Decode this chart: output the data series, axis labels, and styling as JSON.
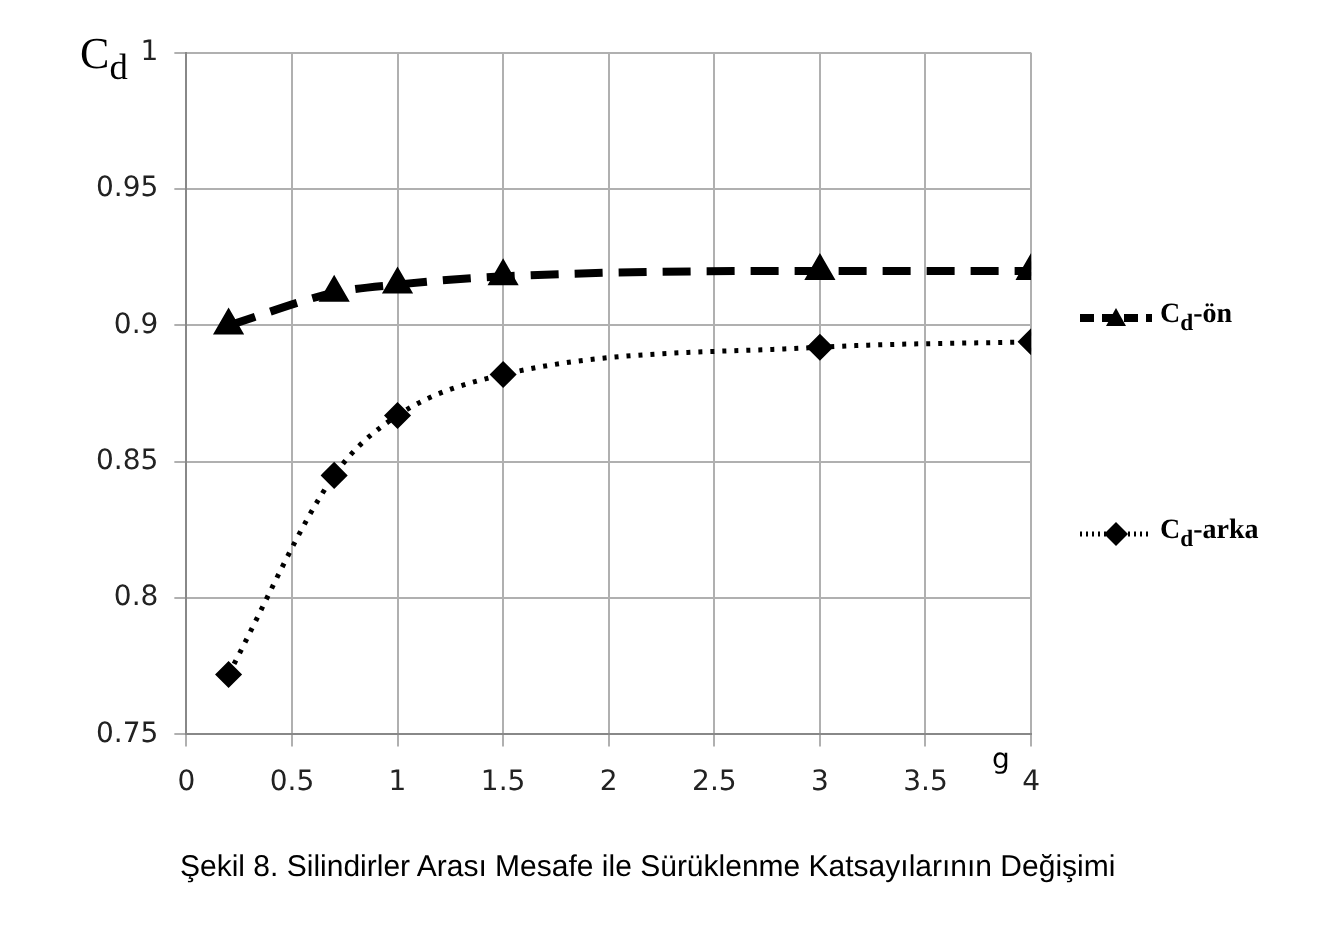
{
  "chart_data": {
    "type": "line",
    "xlabel": "g",
    "ylabel": "C$_{d}$",
    "annotations": [
      "Şekil 8. Silindirler Arası Mesafe ile Sürüklenme Katsayılarının Değişimi"
    ],
    "x": [
      0.2,
      0.7,
      1,
      1.5,
      3,
      4
    ],
    "series": [
      {
        "name": "C$_{d}$-ön",
        "color": "#000000",
        "marker": "triangle",
        "line_style": "dashed",
        "values": [
          0.9,
          0.912,
          0.915,
          0.918,
          0.92,
          0.92
        ]
      },
      {
        "name": "C$_{d}$-arka",
        "color": "#000000",
        "marker": "diamond",
        "line_style": "dotted",
        "values": [
          0.772,
          0.845,
          0.867,
          0.882,
          0.892,
          0.894
        ]
      }
    ],
    "xlim": [
      0,
      4
    ],
    "xticks": [
      0,
      0.5,
      1,
      1.5,
      2,
      2.5,
      3,
      3.5,
      4
    ],
    "ylim": [
      0.75,
      1
    ],
    "yticks": [
      0.75,
      0.8,
      0.85,
      0.9,
      0.95,
      1
    ],
    "grid": true,
    "legend": "right"
  }
}
